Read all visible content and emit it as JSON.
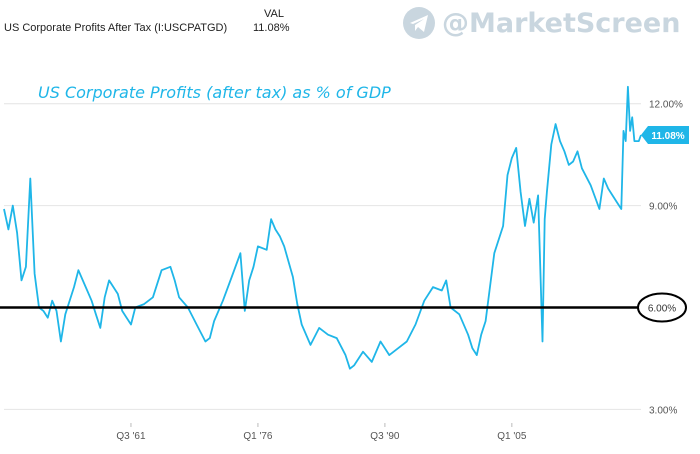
{
  "header": {
    "series_label": "US Corporate Profits After Tax (I:USCPATGD)",
    "val_heading": "VAL",
    "val_value": "11.08%"
  },
  "watermark": {
    "text": "@MarketScreen",
    "icon": "telegram-icon"
  },
  "colors": {
    "line": "#1fb6e8",
    "reference_line": "#000000",
    "grid": "#e4e4e4",
    "badge": "#1fb6e8",
    "annotation": "#1fb6e8"
  },
  "chart_data": {
    "type": "line",
    "title": "US Corporate Profits (after tax) as % of GDP",
    "xlabel": "",
    "ylabel": "",
    "x_tick_labels": [
      "Q3 '61",
      "Q1 '76",
      "Q3 '90",
      "Q1 '05"
    ],
    "y_tick_labels": [
      "3.00%",
      "6.00%",
      "9.00%",
      "12.00%"
    ],
    "ylim": [
      2.6,
      13.7
    ],
    "xlim": [
      1947.0,
      2019.75
    ],
    "grid": true,
    "last_value_label": "11.08%",
    "reference_line": {
      "value": 6.0,
      "label": "6.00%",
      "style": "black horizontal line with circled label"
    },
    "series": [
      {
        "name": "US Corporate Profits After Tax (I:USCPATGD)",
        "x": [
          1947.0,
          1947.5,
          1948.0,
          1948.5,
          1949.0,
          1949.5,
          1950.0,
          1950.5,
          1951.0,
          1951.5,
          1952.0,
          1952.5,
          1953.0,
          1953.5,
          1954.0,
          1955.0,
          1955.5,
          1956.0,
          1956.5,
          1957.0,
          1957.5,
          1958.0,
          1958.5,
          1959.0,
          1960.0,
          1960.5,
          1961.0,
          1961.5,
          1962.0,
          1963.0,
          1964.0,
          1965.0,
          1966.0,
          1966.5,
          1967.0,
          1968.0,
          1969.0,
          1970.0,
          1970.5,
          1971.0,
          1972.0,
          1973.0,
          1974.0,
          1974.5,
          1975.0,
          1975.5,
          1976.0,
          1977.0,
          1977.5,
          1978.0,
          1978.5,
          1979.0,
          1980.0,
          1980.5,
          1981.0,
          1982.0,
          1983.0,
          1984.0,
          1985.0,
          1986.0,
          1986.5,
          1987.0,
          1988.0,
          1989.0,
          1990.0,
          1991.0,
          1992.0,
          1993.0,
          1994.0,
          1995.0,
          1996.0,
          1997.0,
          1997.5,
          1998.0,
          1999.0,
          2000.0,
          2000.5,
          2001.0,
          2001.5,
          2002.0,
          2003.0,
          2004.0,
          2004.5,
          2005.0,
          2005.5,
          2006.0,
          2006.5,
          2007.0,
          2007.5,
          2008.0,
          2008.5,
          2008.75,
          2009.0,
          2009.5,
          2010.0,
          2010.5,
          2011.0,
          2011.5,
          2012.0,
          2012.5,
          2013.0,
          2014.0,
          2015.0,
          2015.5,
          2016.0,
          2016.5,
          2017.0,
          2017.5,
          2017.75,
          2018.0,
          2018.25,
          2018.5,
          2018.75,
          2019.0,
          2019.5,
          2019.75
        ],
        "values": [
          8.9,
          8.3,
          9.0,
          8.2,
          6.8,
          7.2,
          9.8,
          7.0,
          6.0,
          5.9,
          5.7,
          6.2,
          5.9,
          5.0,
          5.8,
          6.6,
          7.1,
          6.8,
          6.5,
          6.2,
          5.8,
          5.4,
          6.3,
          6.8,
          6.4,
          5.9,
          5.7,
          5.5,
          6.0,
          6.1,
          6.3,
          7.1,
          7.2,
          6.8,
          6.3,
          6.0,
          5.5,
          5.0,
          5.1,
          5.6,
          6.2,
          6.9,
          7.6,
          5.9,
          6.8,
          7.2,
          7.8,
          7.7,
          8.6,
          8.3,
          8.1,
          7.8,
          6.9,
          6.1,
          5.5,
          4.9,
          5.4,
          5.2,
          5.1,
          4.6,
          4.2,
          4.3,
          4.7,
          4.4,
          5.0,
          4.6,
          4.8,
          5.0,
          5.5,
          6.2,
          6.6,
          6.5,
          6.8,
          6.0,
          5.8,
          5.2,
          4.8,
          4.6,
          5.2,
          5.6,
          7.6,
          8.4,
          9.9,
          10.4,
          10.7,
          9.4,
          8.4,
          9.2,
          8.5,
          9.3,
          5.0,
          8.6,
          9.4,
          10.8,
          11.4,
          10.9,
          10.6,
          10.2,
          10.3,
          10.6,
          10.1,
          9.6,
          8.9,
          9.8,
          9.5,
          9.3,
          9.1,
          8.9,
          11.2,
          10.9,
          12.5,
          11.2,
          11.6,
          10.9,
          10.9,
          11.08
        ]
      }
    ]
  }
}
